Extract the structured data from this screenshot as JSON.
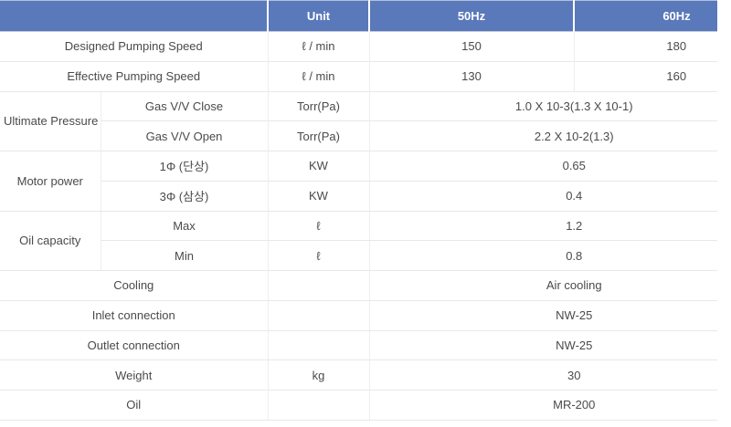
{
  "colors": {
    "header_bg": "#5a79ba",
    "header_text": "#ffffff",
    "body_text": "#4a4a4a",
    "row_border": "#e8e8e8",
    "col_border": "#eeeeee",
    "page_bg": "#ffffff"
  },
  "header": {
    "spacer": "",
    "unit": "Unit",
    "hz50": "50Hz",
    "hz60": "60Hz"
  },
  "rows": {
    "designed": {
      "label": "Designed Pumping Speed",
      "unit": "ℓ / min",
      "v50": "150",
      "v60": "180"
    },
    "effective": {
      "label": "Effective Pumping Speed",
      "unit": "ℓ / min",
      "v50": "130",
      "v60": "160"
    },
    "ultimate": {
      "group": "Ultimate Pressure",
      "close_label": "Gas V/V Close",
      "close_unit": "Torr(Pa)",
      "close_value": "1.0 X 10-3(1.3 X 10-1)",
      "open_label": "Gas V/V Open",
      "open_unit": "Torr(Pa)",
      "open_value": "2.2 X 10-2(1.3)"
    },
    "motor": {
      "group": "Motor power",
      "single_label": "1Φ (단상)",
      "single_unit": "KW",
      "single_value": "0.65",
      "three_label": "3Φ (삼상)",
      "three_unit": "KW",
      "three_value": "0.4"
    },
    "oil_capacity": {
      "group": "Oil capacity",
      "max_label": "Max",
      "max_unit": "ℓ",
      "max_value": "1.2",
      "min_label": "Min",
      "min_unit": "ℓ",
      "min_value": "0.8"
    },
    "cooling": {
      "label": "Cooling",
      "unit": "",
      "value": "Air cooling"
    },
    "inlet": {
      "label": "Inlet connection",
      "unit": "",
      "value": "NW-25"
    },
    "outlet": {
      "label": "Outlet connection",
      "unit": "",
      "value": "NW-25"
    },
    "weight": {
      "label": "Weight",
      "unit": "kg",
      "value": "30"
    },
    "oil": {
      "label": "Oil",
      "unit": "",
      "value": "MR-200"
    }
  }
}
